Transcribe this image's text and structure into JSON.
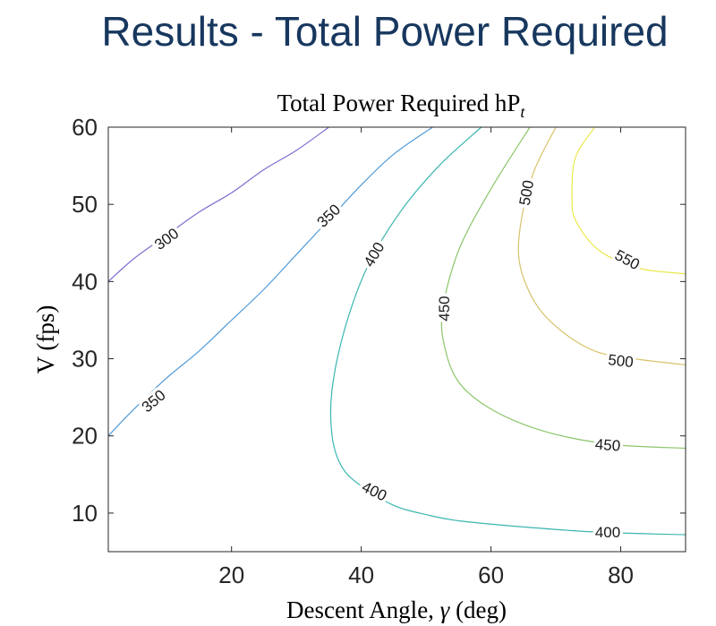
{
  "slide": {
    "title": "Results - Total Power Required"
  },
  "chart_data": {
    "type": "contour",
    "title": "Total Power Required hP",
    "title_subscript": "t",
    "xlabel_text": "Descent Angle, ",
    "xlabel_symbol": "γ",
    "xlabel_unit": " (deg)",
    "ylabel": "V (fps)",
    "xlim": [
      1,
      90
    ],
    "ylim": [
      5,
      60
    ],
    "xticks": [
      20,
      40,
      60,
      80
    ],
    "yticks": [
      10,
      20,
      30,
      40,
      50,
      60
    ],
    "grid": false,
    "colors": {
      "300": "#7b6fd0",
      "350": "#4f9bd9",
      "400": "#3ab6b0",
      "450": "#8cc66a",
      "500": "#d8c36a",
      "550": "#e9e84d"
    },
    "contours": [
      {
        "level": 300,
        "points": [
          [
            1,
            40
          ],
          [
            5,
            43
          ],
          [
            10,
            46
          ],
          [
            15,
            49
          ],
          [
            20,
            51.5
          ],
          [
            25,
            54.5
          ],
          [
            30,
            57
          ],
          [
            35,
            60
          ]
        ]
      },
      {
        "level": 350,
        "points": [
          [
            1,
            20
          ],
          [
            5,
            23.5
          ],
          [
            10,
            27.5
          ],
          [
            15,
            31
          ],
          [
            20,
            35
          ],
          [
            25,
            39
          ],
          [
            30,
            43.5
          ],
          [
            35,
            48
          ],
          [
            40,
            52.5
          ],
          [
            45,
            56.5
          ],
          [
            51,
            60
          ]
        ]
      },
      {
        "level": 400,
        "points": [
          [
            58.5,
            60
          ],
          [
            52,
            55
          ],
          [
            46,
            49
          ],
          [
            41,
            42
          ],
          [
            37.5,
            34
          ],
          [
            35.5,
            26
          ],
          [
            35.5,
            20
          ],
          [
            37,
            16
          ],
          [
            40,
            13.5
          ],
          [
            45,
            11
          ],
          [
            50,
            9.8
          ],
          [
            55,
            9
          ],
          [
            65,
            8.2
          ],
          [
            75,
            7.6
          ],
          [
            85,
            7.3
          ],
          [
            90,
            7.2
          ]
        ]
      },
      {
        "level": 450,
        "points": [
          [
            66,
            60
          ],
          [
            60,
            52
          ],
          [
            55,
            44
          ],
          [
            52.5,
            36
          ],
          [
            53,
            31
          ],
          [
            55,
            27
          ],
          [
            59,
            24
          ],
          [
            65,
            21.5
          ],
          [
            72,
            19.8
          ],
          [
            80,
            18.8
          ],
          [
            90,
            18.4
          ]
        ]
      },
      {
        "level": 500,
        "points": [
          [
            70,
            60
          ],
          [
            66.5,
            54
          ],
          [
            64.5,
            47
          ],
          [
            64.5,
            42
          ],
          [
            67,
            37
          ],
          [
            71,
            33.5
          ],
          [
            76,
            31
          ],
          [
            82,
            30
          ],
          [
            90,
            29.2
          ]
        ]
      },
      {
        "level": 550,
        "points": [
          [
            76,
            60
          ],
          [
            73,
            56
          ],
          [
            72.5,
            51
          ],
          [
            73,
            48
          ],
          [
            76,
            44.5
          ],
          [
            80,
            42.5
          ],
          [
            84,
            41.5
          ],
          [
            90,
            41
          ]
        ]
      }
    ],
    "labels": [
      {
        "text": "300",
        "x": 10,
        "y": 45.5,
        "angle": -36
      },
      {
        "text": "350",
        "x": 35,
        "y": 48.5,
        "angle": -44
      },
      {
        "text": "350",
        "x": 8,
        "y": 24.5,
        "angle": -40
      },
      {
        "text": "400",
        "x": 42,
        "y": 43.5,
        "angle": -60
      },
      {
        "text": "400",
        "x": 42,
        "y": 12.8,
        "angle": 26
      },
      {
        "text": "400",
        "x": 78,
        "y": 7.5,
        "angle": 0
      },
      {
        "text": "450",
        "x": 52.8,
        "y": 36.5,
        "angle": -90
      },
      {
        "text": "450",
        "x": 78,
        "y": 18.8,
        "angle": 4
      },
      {
        "text": "500",
        "x": 65.5,
        "y": 51.5,
        "angle": -80
      },
      {
        "text": "500",
        "x": 80,
        "y": 29.7,
        "angle": 6
      },
      {
        "text": "550",
        "x": 81,
        "y": 42.8,
        "angle": 28
      }
    ]
  }
}
